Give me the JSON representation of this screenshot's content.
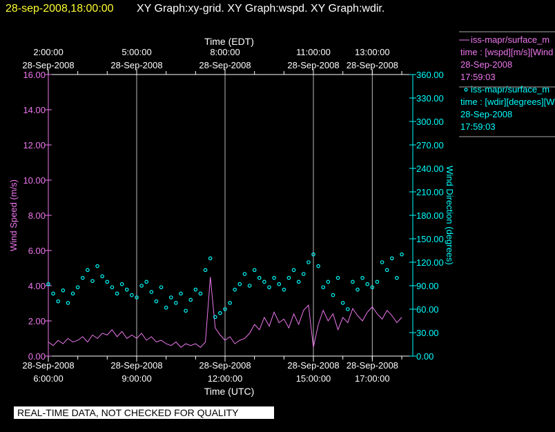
{
  "header": {
    "date": "28-sep-2008,18:00:00",
    "title": "XY Graph:xy-grid.  XY Graph:wspd.  XY Graph:wdir."
  },
  "footer": {
    "notice": "REAL-TIME DATA, NOT CHECKED FOR QUALITY"
  },
  "legend": [
    {
      "symbol": "line",
      "lines": [
        "iss-mapr/surface_m",
        "time : [wspd][m/s][Wind",
        "28-Sep-2008",
        "17:59:03"
      ]
    },
    {
      "symbol": "circle",
      "lines": [
        "iss-mapr/surface_m",
        "time : [wdir][degrees][W",
        "28-Sep-2008",
        "17:59:03"
      ]
    }
  ],
  "colors": {
    "wspd": "#ee77ee",
    "wdir": "#00ffff",
    "axis": "#ffffff",
    "grid": "#bbbbbb",
    "title_date": "#ffff33"
  },
  "chart_data": {
    "type": "line",
    "xlabel": "Time (UTC)",
    "x2label": "Time (EDT)",
    "ylabel": "Wind Speed (m/s)",
    "y2label": "Wind Direction (degrees)",
    "xlim_hours_utc": [
      6,
      18.35
    ],
    "ylim": [
      0,
      16
    ],
    "y2lim": [
      0,
      360
    ],
    "yticks": [
      "0.00",
      "2.00",
      "4.00",
      "6.00",
      "8.00",
      "10.00",
      "12.00",
      "14.00",
      "16.00"
    ],
    "y2ticks": [
      "0.00",
      "30.00",
      "60.00",
      "90.00",
      "120.00",
      "150.00",
      "180.00",
      "210.00",
      "240.00",
      "270.00",
      "300.00",
      "330.00",
      "360.00"
    ],
    "xticks": [
      {
        "hour": 6,
        "date": "28-Sep-2008",
        "time": "6:00:00"
      },
      {
        "hour": 9,
        "date": "28-Sep-2008",
        "time": "9:00:00"
      },
      {
        "hour": 12,
        "date": "28-Sep-2008",
        "time": "12:00:00"
      },
      {
        "hour": 15,
        "date": "28-Sep-2008",
        "time": "15:00:00"
      },
      {
        "hour": 17,
        "date": "28-Sep-2008",
        "time": "17:00:00"
      }
    ],
    "x2ticks": [
      {
        "hour": 6,
        "time": "2:00:00",
        "date": "28-Sep-2008"
      },
      {
        "hour": 9,
        "time": "5:00:00",
        "date": "28-Sep-2008"
      },
      {
        "hour": 12,
        "time": "8:00:00",
        "date": "28-Sep-2008"
      },
      {
        "hour": 15,
        "time": "11:00:00",
        "date": "28-Sep-2008"
      },
      {
        "hour": 17,
        "time": "13:00:00",
        "date": "28-Sep-2008"
      }
    ],
    "grid": "vertical at major ticks",
    "x_start_hour": 6,
    "x_step_minutes": 10,
    "series": [
      {
        "name": "wspd",
        "axis": "left",
        "style": "line",
        "values": [
          0.8,
          0.6,
          0.9,
          0.7,
          1.0,
          0.8,
          0.9,
          1.1,
          0.8,
          1.2,
          1.0,
          1.3,
          1.2,
          1.5,
          1.1,
          1.4,
          1.0,
          1.2,
          1.0,
          1.3,
          0.9,
          1.1,
          0.8,
          0.9,
          0.7,
          0.6,
          0.8,
          0.5,
          0.7,
          0.6,
          0.7,
          0.5,
          0.8,
          4.5,
          1.6,
          1.2,
          0.9,
          1.1,
          0.7,
          0.9,
          1.0,
          1.3,
          1.8,
          1.5,
          2.2,
          1.7,
          2.5,
          1.9,
          2.1,
          1.6,
          2.4,
          1.8,
          2.6,
          2.9,
          0.5,
          1.8,
          2.6,
          2.0,
          2.4,
          1.5,
          2.2,
          1.9,
          2.7,
          2.3,
          2.0,
          2.5,
          2.8,
          2.4,
          2.1,
          2.6,
          2.3,
          1.9,
          2.2
        ]
      },
      {
        "name": "wdir",
        "axis": "right",
        "style": "circle",
        "values": [
          92,
          80,
          70,
          84,
          68,
          80,
          88,
          100,
          110,
          96,
          115,
          102,
          95,
          88,
          80,
          92,
          85,
          78,
          75,
          90,
          95,
          82,
          70,
          88,
          62,
          75,
          68,
          80,
          58,
          72,
          85,
          80,
          110,
          125,
          50,
          55,
          60,
          68,
          85,
          92,
          105,
          90,
          110,
          100,
          95,
          88,
          100,
          92,
          85,
          100,
          110,
          95,
          105,
          120,
          130,
          115,
          88,
          95,
          78,
          100,
          68,
          60,
          95,
          85,
          100,
          92,
          88,
          95,
          120,
          110,
          125,
          100,
          130
        ]
      }
    ]
  }
}
